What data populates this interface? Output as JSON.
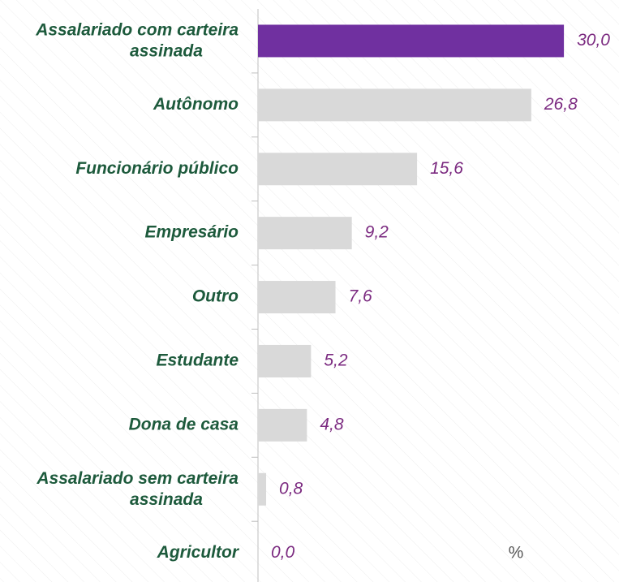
{
  "chart_data": {
    "type": "hbar",
    "categories": [
      "Assalariado com carteira assinada",
      "Autônomo",
      "Funcionário público",
      "Empresário",
      "Outro",
      "Estudante",
      "Dona de casa",
      "Assalariado sem carteira assinada",
      "Agricultor"
    ],
    "values": [
      30.0,
      26.8,
      15.6,
      9.2,
      7.6,
      5.2,
      4.8,
      0.8,
      0.0
    ],
    "value_labels": [
      "30,0",
      "26,8",
      "15,6",
      "9,2",
      "7,6",
      "5,2",
      "4,8",
      "0,8",
      "0,0"
    ],
    "colors": [
      "#7030a0",
      "#d9d9d9",
      "#d9d9d9",
      "#d9d9d9",
      "#d9d9d9",
      "#d9d9d9",
      "#d9d9d9",
      "#d9d9d9",
      "#d9d9d9"
    ],
    "unit_label": "%"
  }
}
